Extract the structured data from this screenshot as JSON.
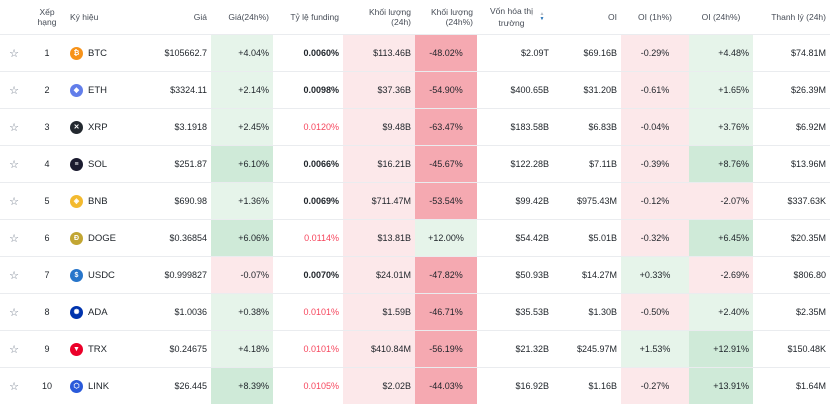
{
  "headers": {
    "star": "",
    "rank": "Xếp hạng",
    "symbol": "Ký hiệu",
    "price": "Giá",
    "change": "Giá(24h%)",
    "funding": "Tỷ lệ funding",
    "volume": "Khối lượng (24h)",
    "volume_change": "Khối lượng (24h%)",
    "mcap": "Vốn hóa thị trường",
    "oi": "OI",
    "oi1h": "OI (1h%)",
    "oi24h": "OI (24h%)",
    "liq": "Thanh lý (24h)"
  },
  "colors": {
    "pos_light": "#e6f4ea",
    "pos_mid": "#cfead8",
    "neg_light": "#fce8ea",
    "neg_mid": "#f8c9ce",
    "neg_strong": "#f5a9b1",
    "text_neg": "#f6465d"
  },
  "rows": [
    {
      "rank": "1",
      "symbol": "BTC",
      "logo": "₿",
      "logo_color": "#f7931a",
      "price": "$105662.7",
      "change": "+4.04%",
      "funding": "0.0060%",
      "volume": "$113.46B",
      "volume_change": "-48.02%",
      "mcap": "$2.09T",
      "oi": "$69.16B",
      "oi1h": "-0.29%",
      "oi24h": "+4.48%",
      "liq": "$74.81M",
      "bg": {
        "change": "pos_light",
        "volume": "neg_light",
        "volume_change": "neg_strong",
        "oi1h": "neg_light",
        "oi24h": "pos_light"
      },
      "funding_neg": false
    },
    {
      "rank": "2",
      "symbol": "ETH",
      "logo": "◆",
      "logo_color": "#627eea",
      "price": "$3324.11",
      "change": "+2.14%",
      "funding": "0.0098%",
      "volume": "$37.36B",
      "volume_change": "-54.90%",
      "mcap": "$400.65B",
      "oi": "$31.20B",
      "oi1h": "-0.61%",
      "oi24h": "+1.65%",
      "liq": "$26.39M",
      "bg": {
        "change": "pos_light",
        "volume": "neg_light",
        "volume_change": "neg_strong",
        "oi1h": "neg_light",
        "oi24h": "pos_light"
      },
      "funding_neg": false
    },
    {
      "rank": "3",
      "symbol": "XRP",
      "logo": "✕",
      "logo_color": "#23292f",
      "price": "$3.1918",
      "change": "+2.45%",
      "funding": "0.0120%",
      "volume": "$9.48B",
      "volume_change": "-63.47%",
      "mcap": "$183.58B",
      "oi": "$6.83B",
      "oi1h": "-0.04%",
      "oi24h": "+3.76%",
      "liq": "$6.92M",
      "bg": {
        "change": "pos_light",
        "volume": "neg_light",
        "volume_change": "neg_strong",
        "oi1h": "neg_light",
        "oi24h": "pos_light"
      },
      "funding_neg": true
    },
    {
      "rank": "4",
      "symbol": "SOL",
      "logo": "≡",
      "logo_color": "#1b1b2f",
      "price": "$251.87",
      "change": "+6.10%",
      "funding": "0.0066%",
      "volume": "$16.21B",
      "volume_change": "-45.67%",
      "mcap": "$122.28B",
      "oi": "$7.11B",
      "oi1h": "-0.39%",
      "oi24h": "+8.76%",
      "liq": "$13.96M",
      "bg": {
        "change": "pos_mid",
        "volume": "neg_light",
        "volume_change": "neg_strong",
        "oi1h": "neg_light",
        "oi24h": "pos_mid"
      },
      "funding_neg": false
    },
    {
      "rank": "5",
      "symbol": "BNB",
      "logo": "◈",
      "logo_color": "#f3ba2f",
      "price": "$690.98",
      "change": "+1.36%",
      "funding": "0.0069%",
      "volume": "$711.47M",
      "volume_change": "-53.54%",
      "mcap": "$99.42B",
      "oi": "$975.43M",
      "oi1h": "-0.12%",
      "oi24h": "-2.07%",
      "liq": "$337.63K",
      "bg": {
        "change": "pos_light",
        "volume": "neg_light",
        "volume_change": "neg_strong",
        "oi1h": "neg_light",
        "oi24h": "neg_light"
      },
      "funding_neg": false
    },
    {
      "rank": "6",
      "symbol": "DOGE",
      "logo": "Ð",
      "logo_color": "#c2a633",
      "price": "$0.36854",
      "change": "+6.06%",
      "funding": "0.0114%",
      "volume": "$13.81B",
      "volume_change": "+12.00%",
      "mcap": "$54.42B",
      "oi": "$5.01B",
      "oi1h": "-0.32%",
      "oi24h": "+6.45%",
      "liq": "$20.35M",
      "bg": {
        "change": "pos_mid",
        "volume": "neg_light",
        "volume_change": "pos_light",
        "oi1h": "neg_light",
        "oi24h": "pos_mid"
      },
      "funding_neg": true
    },
    {
      "rank": "7",
      "symbol": "USDC",
      "logo": "$",
      "logo_color": "#2775ca",
      "price": "$0.999827",
      "change": "-0.07%",
      "funding": "0.0070%",
      "volume": "$24.01M",
      "volume_change": "-47.82%",
      "mcap": "$50.93B",
      "oi": "$14.27M",
      "oi1h": "+0.33%",
      "oi24h": "-2.69%",
      "liq": "$806.80",
      "bg": {
        "change": "neg_light",
        "volume": "neg_light",
        "volume_change": "neg_strong",
        "oi1h": "pos_light",
        "oi24h": "neg_light"
      },
      "funding_neg": false
    },
    {
      "rank": "8",
      "symbol": "ADA",
      "logo": "✺",
      "logo_color": "#0033ad",
      "price": "$1.0036",
      "change": "+0.38%",
      "funding": "0.0101%",
      "volume": "$1.59B",
      "volume_change": "-46.71%",
      "mcap": "$35.53B",
      "oi": "$1.30B",
      "oi1h": "-0.50%",
      "oi24h": "+2.40%",
      "liq": "$2.35M",
      "bg": {
        "change": "pos_light",
        "volume": "neg_light",
        "volume_change": "neg_strong",
        "oi1h": "neg_light",
        "oi24h": "pos_light"
      },
      "funding_neg": true
    },
    {
      "rank": "9",
      "symbol": "TRX",
      "logo": "▼",
      "logo_color": "#eb0029",
      "price": "$0.24675",
      "change": "+4.18%",
      "funding": "0.0101%",
      "volume": "$410.84M",
      "volume_change": "-56.19%",
      "mcap": "$21.32B",
      "oi": "$245.97M",
      "oi1h": "+1.53%",
      "oi24h": "+12.91%",
      "liq": "$150.48K",
      "bg": {
        "change": "pos_light",
        "volume": "neg_light",
        "volume_change": "neg_strong",
        "oi1h": "pos_light",
        "oi24h": "pos_mid"
      },
      "funding_neg": true
    },
    {
      "rank": "10",
      "symbol": "LINK",
      "logo": "⬡",
      "logo_color": "#2a5ada",
      "price": "$26.445",
      "change": "+8.39%",
      "funding": "0.0105%",
      "volume": "$2.02B",
      "volume_change": "-44.03%",
      "mcap": "$16.92B",
      "oi": "$1.16B",
      "oi1h": "-0.27%",
      "oi24h": "+13.91%",
      "liq": "$1.64M",
      "bg": {
        "change": "pos_mid",
        "volume": "neg_light",
        "volume_change": "neg_strong",
        "oi1h": "neg_light",
        "oi24h": "pos_mid"
      },
      "funding_neg": true
    }
  ]
}
